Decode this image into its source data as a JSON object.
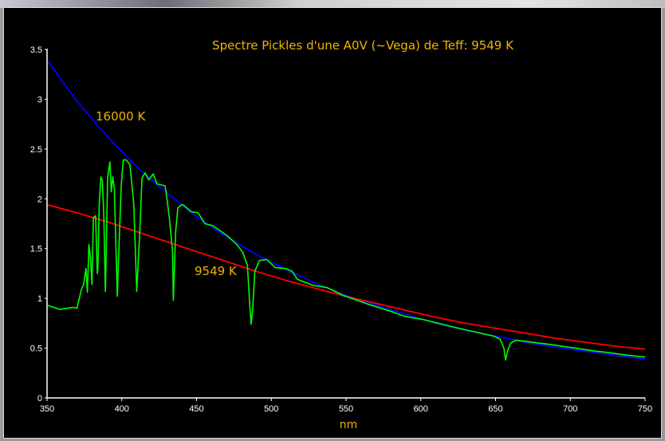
{
  "chart_data": {
    "type": "line",
    "title": "Spectre Pickles d'une A0V (~Vega) de Teff: 9549 K",
    "xlabel": "nm",
    "ylabel": "",
    "xlim": [
      350,
      750
    ],
    "ylim": [
      0,
      3.5
    ],
    "x_ticks": [
      "350",
      "400",
      "450",
      "500",
      "550",
      "600",
      "650",
      "700",
      "750"
    ],
    "y_ticks": [
      "0",
      "0.5",
      "1",
      "1.5",
      "2",
      "2.5",
      "3",
      "3.5"
    ],
    "grid": false,
    "annotations": [
      "16000 K",
      "9549 K"
    ],
    "colors": {
      "background": "#000000",
      "axes": "#ffffff",
      "text": "#f0b400",
      "planck_16000": "#0000ff",
      "planck_9549": "#ff0000",
      "spectrum": "#00ff00"
    },
    "series": [
      {
        "label": "16000 K",
        "color": "#0000ff",
        "x": [
          350,
          370,
          390,
          410,
          430,
          450,
          470,
          490,
          510,
          530,
          550,
          570,
          590,
          610,
          630,
          650,
          670,
          690,
          710,
          730,
          750
        ],
        "y": [
          3.39,
          2.98,
          2.63,
          2.32,
          2.06,
          1.82,
          1.62,
          1.44,
          1.29,
          1.15,
          1.03,
          0.93,
          0.84,
          0.75,
          0.68,
          0.62,
          0.56,
          0.51,
          0.47,
          0.43,
          0.39
        ]
      },
      {
        "label": "9549 K",
        "color": "#ff0000",
        "x": [
          350,
          370,
          390,
          410,
          430,
          450,
          470,
          490,
          510,
          530,
          550,
          570,
          590,
          610,
          630,
          650,
          670,
          690,
          710,
          730,
          750
        ],
        "y": [
          1.94,
          1.86,
          1.77,
          1.67,
          1.57,
          1.47,
          1.37,
          1.27,
          1.18,
          1.1,
          1.02,
          0.95,
          0.88,
          0.81,
          0.75,
          0.7,
          0.65,
          0.6,
          0.56,
          0.52,
          0.49
        ]
      },
      {
        "color": "#00ff00",
        "x": [
          350.5,
          358.5,
          367.6,
          370,
          373,
          374.5,
          376,
          377,
          378,
          379,
          380,
          381,
          382.5,
          383.6,
          384,
          385,
          386,
          387,
          388,
          389,
          389.5,
          390.5,
          392,
          393,
          394,
          395,
          397,
          397.5,
          399.6,
          401,
          403,
          405.5,
          408,
          410,
          412,
          413.5,
          415.6,
          418,
          421,
          423.6,
          429,
          430.5,
          432,
          434,
          434.5,
          436,
          437.5,
          440,
          441,
          446.5,
          451,
          455.6,
          461,
          470.5,
          477,
          481,
          484,
          485.5,
          486.5,
          487.6,
          489,
          492,
          497,
          502.5,
          509.5,
          514,
          517.5,
          528,
          537,
          548,
          565,
          580,
          589,
          601,
          622.5,
          649,
          653,
          655.6,
          656.7,
          658,
          660,
          663.6,
          685,
          717,
          723,
          738,
          750
        ],
        "y": [
          0.93,
          0.89,
          0.91,
          0.9,
          1.09,
          1.14,
          1.3,
          1.06,
          1.54,
          1.41,
          1.14,
          1.81,
          1.83,
          1.25,
          1.3,
          1.97,
          2.22,
          2.18,
          1.81,
          1.07,
          1.41,
          2.21,
          2.37,
          2.07,
          2.22,
          2.1,
          1.02,
          1.27,
          2.13,
          2.39,
          2.39,
          2.34,
          1.94,
          1.07,
          1.67,
          2.21,
          2.26,
          2.19,
          2.25,
          2.15,
          2.13,
          1.97,
          1.78,
          1.46,
          0.98,
          1.67,
          1.91,
          1.94,
          1.94,
          1.87,
          1.86,
          1.75,
          1.73,
          1.63,
          1.54,
          1.46,
          1.33,
          0.95,
          0.74,
          0.9,
          1.27,
          1.38,
          1.39,
          1.31,
          1.3,
          1.27,
          1.19,
          1.13,
          1.11,
          1.03,
          0.94,
          0.87,
          0.82,
          0.79,
          0.71,
          0.62,
          0.59,
          0.5,
          0.38,
          0.47,
          0.55,
          0.58,
          0.54,
          0.47,
          0.46,
          0.43,
          0.41
        ]
      }
    ]
  }
}
